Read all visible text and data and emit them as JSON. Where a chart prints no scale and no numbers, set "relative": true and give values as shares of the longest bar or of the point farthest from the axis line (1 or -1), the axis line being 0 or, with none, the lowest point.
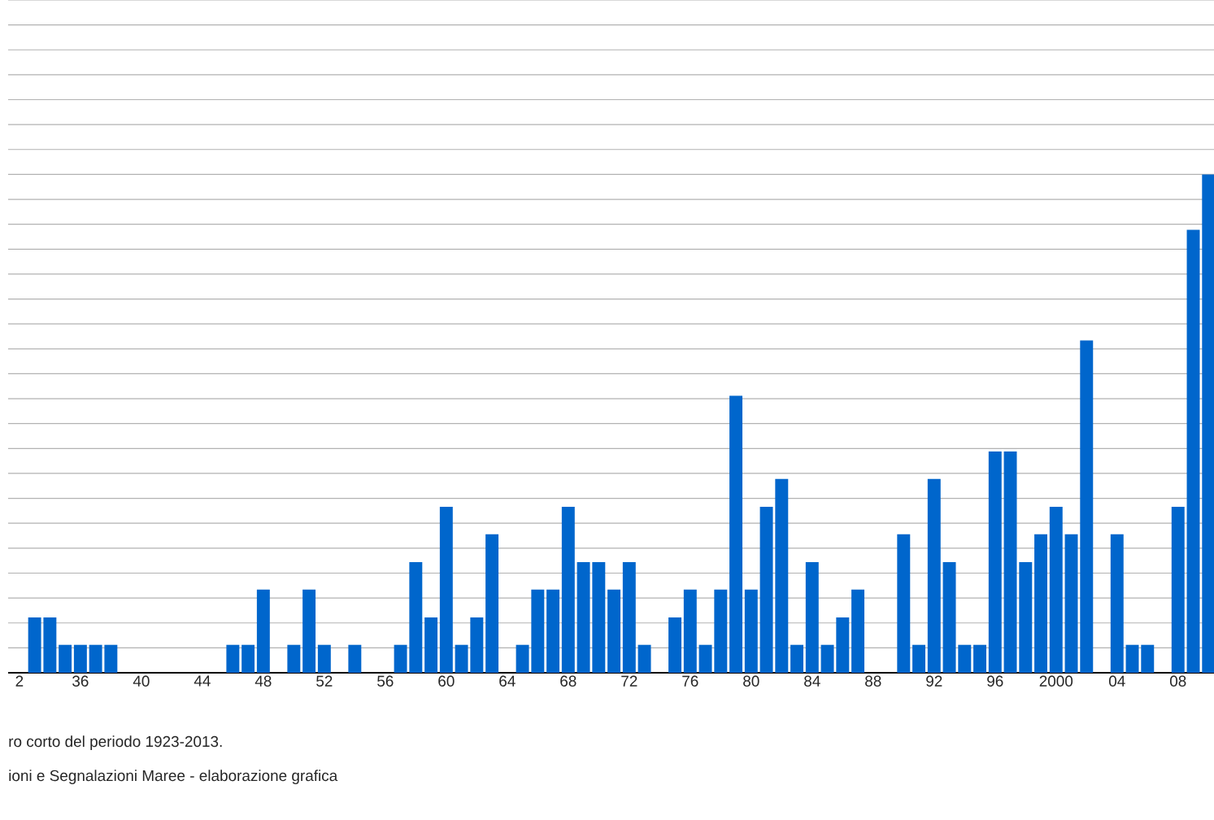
{
  "chart_data": {
    "type": "bar",
    "relative": true,
    "color": "#0066cc",
    "grid": "y",
    "categories": [
      "2",
      null,
      null,
      null,
      "36",
      null,
      null,
      null,
      "40",
      null,
      null,
      null,
      "44",
      null,
      null,
      null,
      "48",
      null,
      null,
      null,
      "52",
      null,
      null,
      null,
      "56",
      null,
      null,
      null,
      "60",
      null,
      null,
      null,
      "64",
      null,
      null,
      null,
      "68",
      null,
      null,
      null,
      "72",
      null,
      null,
      null,
      "76",
      null,
      null,
      null,
      "80",
      null,
      null,
      null,
      "84",
      null,
      null,
      null,
      "88",
      null,
      null,
      null,
      "92",
      null,
      null,
      null,
      "96",
      null,
      null,
      null,
      "2000",
      null,
      null,
      null,
      "04",
      null,
      null,
      null,
      "08",
      null,
      null
    ],
    "values": [
      0,
      0.111,
      0.111,
      0.056,
      0.056,
      0.056,
      0.056,
      0,
      0,
      0,
      0,
      0,
      0,
      0,
      0.056,
      0.056,
      0.167,
      0,
      0.056,
      0.167,
      0.056,
      0,
      0.056,
      0,
      0,
      0.056,
      0.222,
      0.111,
      0.333,
      0.056,
      0.111,
      0.278,
      0,
      0.056,
      0.167,
      0.167,
      0.333,
      0.222,
      0.222,
      0.167,
      0.222,
      0.056,
      0,
      0.111,
      0.167,
      0.056,
      0.167,
      0.556,
      0.167,
      0.333,
      0.389,
      0.056,
      0.222,
      0.056,
      0.111,
      0.167,
      0,
      0,
      0.278,
      0.056,
      0.389,
      0.222,
      0.056,
      0.056,
      0.444,
      0.444,
      0.222,
      0.278,
      0.333,
      0.278,
      0.667,
      0,
      0.278,
      0.056,
      0.056,
      0,
      0.333,
      0.889,
      1
    ],
    "annotations": [
      "ro corto del periodo 1923-2013.",
      "ioni e Segnalazioni Maree - elaborazione grafica"
    ]
  }
}
